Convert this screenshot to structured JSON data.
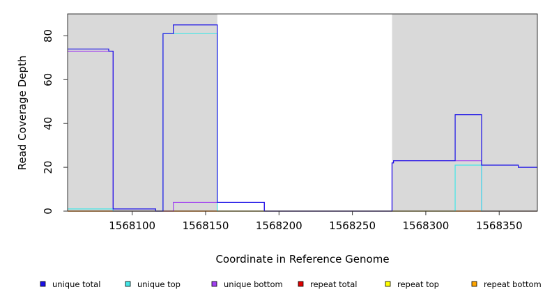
{
  "chart_data": {
    "type": "line",
    "title": "",
    "xlabel": "Coordinate in Reference Genome",
    "ylabel": "Read Coverage Depth",
    "xlim": [
      1568056,
      1568376
    ],
    "ylim": [
      0,
      90
    ],
    "x_ticks": [
      1568100,
      1568150,
      1568200,
      1568250,
      1568300,
      1568350
    ],
    "y_ticks": [
      0,
      20,
      40,
      60,
      80
    ],
    "shaded_regions": [
      {
        "x_start": 1568056,
        "x_end": 1568158
      },
      {
        "x_start": 1568277,
        "x_end": 1568376
      }
    ],
    "colors": {
      "unique_total": "#1a10e6",
      "unique_top": "#44e6e6",
      "unique_bottom": "#a040f0",
      "repeat_total": "#e00000",
      "repeat_top": "#ffff00",
      "repeat_bottom": "#ffa500",
      "shade": "#d9d9d9"
    },
    "series": [
      {
        "name": "unique total",
        "color_key": "unique_total",
        "points": [
          [
            1568056,
            74
          ],
          [
            1568084,
            74
          ],
          [
            1568084,
            73
          ],
          [
            1568087,
            73
          ],
          [
            1568087,
            1
          ],
          [
            1568116,
            1
          ],
          [
            1568116,
            0
          ],
          [
            1568121,
            0
          ],
          [
            1568121,
            81
          ],
          [
            1568128,
            81
          ],
          [
            1568128,
            85
          ],
          [
            1568158,
            85
          ],
          [
            1568158,
            4
          ],
          [
            1568190,
            4
          ],
          [
            1568190,
            0
          ],
          [
            1568277,
            0
          ],
          [
            1568277,
            22
          ],
          [
            1568278,
            22
          ],
          [
            1568278,
            23
          ],
          [
            1568320,
            23
          ],
          [
            1568320,
            44
          ],
          [
            1568338,
            44
          ],
          [
            1568338,
            21
          ],
          [
            1568363,
            21
          ],
          [
            1568363,
            20
          ],
          [
            1568376,
            20
          ]
        ]
      },
      {
        "name": "unique top",
        "color_key": "unique_top",
        "points": [
          [
            1568056,
            1
          ],
          [
            1568087,
            1
          ],
          [
            1568087,
            0
          ],
          [
            1568121,
            0
          ],
          [
            1568121,
            81
          ],
          [
            1568158,
            81
          ],
          [
            1568158,
            0
          ],
          [
            1568320,
            0
          ],
          [
            1568320,
            21
          ],
          [
            1568338,
            21
          ],
          [
            1568338,
            0
          ],
          [
            1568376,
            0
          ]
        ]
      },
      {
        "name": "unique bottom",
        "color_key": "unique_bottom",
        "points": [
          [
            1568056,
            73
          ],
          [
            1568087,
            73
          ],
          [
            1568087,
            0
          ],
          [
            1568128,
            0
          ],
          [
            1568128,
            4
          ],
          [
            1568190,
            4
          ],
          [
            1568190,
            0
          ],
          [
            1568277,
            0
          ],
          [
            1568277,
            22
          ],
          [
            1568278,
            22
          ],
          [
            1568278,
            23
          ],
          [
            1568338,
            23
          ],
          [
            1568338,
            0
          ],
          [
            1568376,
            0
          ]
        ]
      },
      {
        "name": "repeat total",
        "color_key": "repeat_total",
        "points": [
          [
            1568056,
            0
          ],
          [
            1568376,
            0
          ]
        ]
      },
      {
        "name": "repeat top",
        "color_key": "repeat_top",
        "points": [
          [
            1568056,
            0
          ],
          [
            1568376,
            0
          ]
        ]
      },
      {
        "name": "repeat bottom",
        "color_key": "repeat_bottom",
        "points": [
          [
            1568056,
            0
          ],
          [
            1568376,
            0
          ]
        ]
      }
    ],
    "legend": [
      {
        "label": "unique total",
        "color_key": "unique_total"
      },
      {
        "label": "unique top",
        "color_key": "unique_top"
      },
      {
        "label": "unique bottom",
        "color_key": "unique_bottom"
      },
      {
        "label": "repeat total",
        "color_key": "repeat_total"
      },
      {
        "label": "repeat top",
        "color_key": "repeat_top"
      },
      {
        "label": "repeat bottom",
        "color_key": "repeat_bottom"
      }
    ],
    "legend_position": "bottom"
  }
}
